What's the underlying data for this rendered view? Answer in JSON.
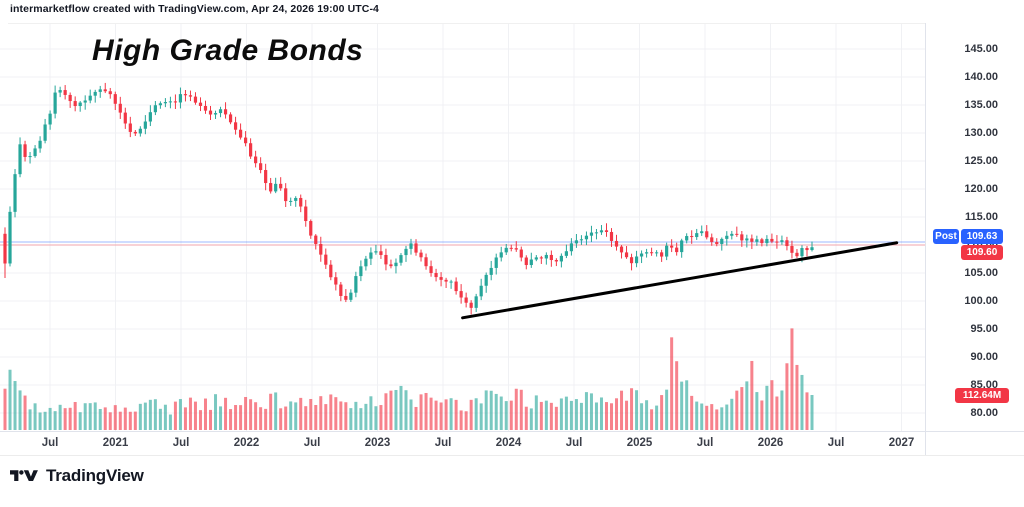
{
  "header": {
    "attribution": "intermarketflow created with TradingView.com, Apr 24, 2026 19:00 UTC-4"
  },
  "title": "High Grade Bonds",
  "logo": {
    "text": "TradingView"
  },
  "price_scale_badges": {
    "post_label": "Post",
    "post_value": "109.63",
    "last_value": "109.60",
    "volume_value": "112.64M"
  },
  "colors": {
    "up": "#26a69a",
    "down": "#f23645",
    "volume_up": "rgba(38,166,154,0.62)",
    "volume_down": "rgba(242,54,69,0.62)",
    "badge_blue": "#2962ff",
    "badge_red": "#f23645",
    "post_line": "rgba(41,98,255,0.45)",
    "close_line": "rgba(242,54,69,0.40)",
    "grid": "#f0f1f4",
    "trendline": "#000000"
  },
  "chart_data": {
    "type": "candlestick_with_volume",
    "title": "High Grade Bonds",
    "x_ticks": [
      "Jul",
      "2021",
      "Jul",
      "2022",
      "Jul",
      "2023",
      "Jul",
      "2024",
      "Jul",
      "2025",
      "Jul",
      "2026",
      "Jul",
      "2027"
    ],
    "y_ticks": [
      145,
      140,
      135,
      130,
      125,
      120,
      115,
      110,
      105,
      100,
      95,
      90,
      85,
      80
    ],
    "ylim": [
      80,
      149.5
    ],
    "grid": true,
    "candle_count": 162,
    "first_open": 112,
    "last_close": 109.6,
    "post_price": 109.63,
    "last_volume_label": "112.64M",
    "seed": 9,
    "close_anchors": [
      [
        0.0,
        107
      ],
      [
        0.01,
        121
      ],
      [
        0.019,
        128.5
      ],
      [
        0.027,
        124.5
      ],
      [
        0.041,
        128
      ],
      [
        0.056,
        133.5
      ],
      [
        0.064,
        138.3
      ],
      [
        0.076,
        136.5
      ],
      [
        0.088,
        134.5
      ],
      [
        0.103,
        136
      ],
      [
        0.118,
        137.5
      ],
      [
        0.13,
        137
      ],
      [
        0.145,
        133
      ],
      [
        0.159,
        129.5
      ],
      [
        0.17,
        131.5
      ],
      [
        0.183,
        134.5
      ],
      [
        0.196,
        135
      ],
      [
        0.207,
        135.5
      ],
      [
        0.221,
        137
      ],
      [
        0.232,
        136.5
      ],
      [
        0.245,
        134.5
      ],
      [
        0.257,
        133.5
      ],
      [
        0.266,
        134.5
      ],
      [
        0.281,
        131.5
      ],
      [
        0.299,
        127.5
      ],
      [
        0.314,
        124
      ],
      [
        0.326,
        119.5
      ],
      [
        0.338,
        121
      ],
      [
        0.351,
        117
      ],
      [
        0.363,
        118.5
      ],
      [
        0.375,
        113
      ],
      [
        0.388,
        109
      ],
      [
        0.4,
        106
      ],
      [
        0.413,
        101.5
      ],
      [
        0.425,
        100
      ],
      [
        0.434,
        104
      ],
      [
        0.446,
        107.5
      ],
      [
        0.459,
        109
      ],
      [
        0.471,
        107
      ],
      [
        0.483,
        106.5
      ],
      [
        0.496,
        109.5
      ],
      [
        0.504,
        110
      ],
      [
        0.517,
        107
      ],
      [
        0.529,
        105
      ],
      [
        0.542,
        104
      ],
      [
        0.554,
        103
      ],
      [
        0.566,
        100.5
      ],
      [
        0.576,
        98.7
      ],
      [
        0.586,
        101.5
      ],
      [
        0.601,
        105.5
      ],
      [
        0.613,
        108.5
      ],
      [
        0.623,
        110
      ],
      [
        0.633,
        109
      ],
      [
        0.646,
        106.5
      ],
      [
        0.658,
        107.5
      ],
      [
        0.67,
        108
      ],
      [
        0.683,
        107
      ],
      [
        0.695,
        109
      ],
      [
        0.708,
        110.5
      ],
      [
        0.72,
        111.5
      ],
      [
        0.732,
        112.5
      ],
      [
        0.742,
        113.2
      ],
      [
        0.752,
        111
      ],
      [
        0.765,
        108.5
      ],
      [
        0.777,
        107
      ],
      [
        0.789,
        108
      ],
      [
        0.802,
        109
      ],
      [
        0.812,
        108
      ],
      [
        0.822,
        110
      ],
      [
        0.832,
        109
      ],
      [
        0.841,
        111
      ],
      [
        0.851,
        111.8
      ],
      [
        0.861,
        112.3
      ],
      [
        0.871,
        111
      ],
      [
        0.881,
        110.5
      ],
      [
        0.891,
        111
      ],
      [
        0.901,
        111.8
      ],
      [
        0.911,
        111.2
      ],
      [
        0.921,
        111.5
      ],
      [
        0.931,
        110.5
      ],
      [
        0.94,
        110.8
      ],
      [
        0.95,
        110.4
      ],
      [
        0.96,
        110.8
      ],
      [
        0.97,
        110
      ],
      [
        0.978,
        107.8
      ],
      [
        0.985,
        108.8
      ],
      [
        0.993,
        109.3
      ],
      [
        1.0,
        109.6
      ]
    ],
    "volume_anchors": [
      [
        0.0,
        35
      ],
      [
        0.009,
        55
      ],
      [
        0.016,
        38
      ],
      [
        0.025,
        28
      ],
      [
        0.037,
        22
      ],
      [
        0.056,
        25
      ],
      [
        0.074,
        20
      ],
      [
        0.093,
        23
      ],
      [
        0.112,
        25
      ],
      [
        0.13,
        20
      ],
      [
        0.149,
        27
      ],
      [
        0.167,
        22
      ],
      [
        0.186,
        25
      ],
      [
        0.204,
        20
      ],
      [
        0.223,
        28
      ],
      [
        0.242,
        24
      ],
      [
        0.26,
        29
      ],
      [
        0.279,
        25
      ],
      [
        0.299,
        29
      ],
      [
        0.316,
        27
      ],
      [
        0.335,
        31
      ],
      [
        0.353,
        26
      ],
      [
        0.372,
        29
      ],
      [
        0.39,
        27
      ],
      [
        0.409,
        33
      ],
      [
        0.428,
        29
      ],
      [
        0.446,
        25
      ],
      [
        0.465,
        29
      ],
      [
        0.483,
        46
      ],
      [
        0.493,
        40
      ],
      [
        0.504,
        32
      ],
      [
        0.52,
        29
      ],
      [
        0.539,
        31
      ],
      [
        0.558,
        27
      ],
      [
        0.576,
        25
      ],
      [
        0.595,
        32
      ],
      [
        0.613,
        29
      ],
      [
        0.632,
        36
      ],
      [
        0.651,
        27
      ],
      [
        0.669,
        33
      ],
      [
        0.688,
        29
      ],
      [
        0.706,
        34
      ],
      [
        0.725,
        31
      ],
      [
        0.737,
        36
      ],
      [
        0.756,
        33
      ],
      [
        0.774,
        38
      ],
      [
        0.793,
        29
      ],
      [
        0.805,
        25
      ],
      [
        0.818,
        36
      ],
      [
        0.829,
        92
      ],
      [
        0.836,
        40
      ],
      [
        0.855,
        38
      ],
      [
        0.867,
        29
      ],
      [
        0.88,
        21
      ],
      [
        0.892,
        19
      ],
      [
        0.905,
        29
      ],
      [
        0.921,
        66
      ],
      [
        0.933,
        38
      ],
      [
        0.948,
        46
      ],
      [
        0.96,
        44
      ],
      [
        0.97,
        60
      ],
      [
        0.978,
        96
      ],
      [
        0.983,
        84
      ],
      [
        0.99,
        48
      ],
      [
        1.0,
        34
      ]
    ],
    "trendline": {
      "start": {
        "t": 0.567,
        "price": 97.0
      },
      "end": {
        "t": 1.105,
        "price": 110.4
      }
    }
  }
}
